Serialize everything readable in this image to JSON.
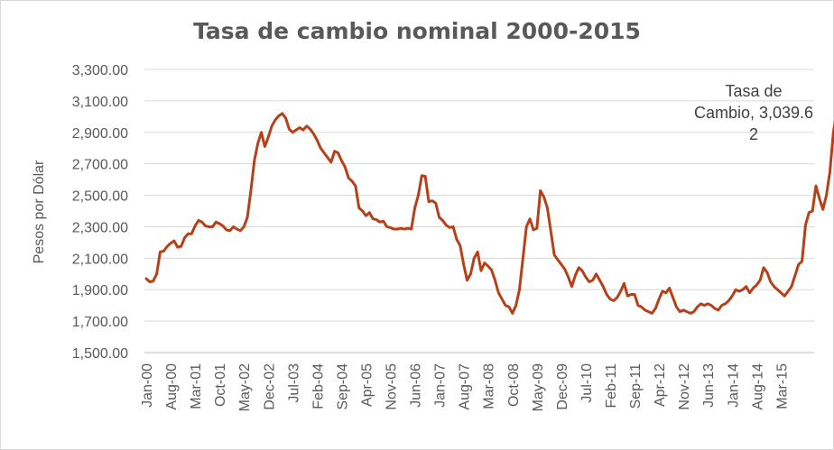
{
  "chart_data": {
    "type": "line",
    "title": "Tasa de cambio nominal 2000-2015",
    "xlabel": "",
    "ylabel": "Pesos por Dólar",
    "ylim": [
      1500,
      3300
    ],
    "yticks": [
      "1,500.00",
      "1,700.00",
      "1,900.00",
      "2,100.00",
      "2,300.00",
      "2,500.00",
      "2,700.00",
      "2,900.00",
      "3,100.00",
      "3,300.00"
    ],
    "xticks": [
      "Jan-00",
      "Aug-00",
      "Mar-01",
      "Oct-01",
      "May-02",
      "Dec-02",
      "Jul-03",
      "Feb-04",
      "Sep-04",
      "Apr-05",
      "Nov-05",
      "Jun-06",
      "Jan-07",
      "Aug-07",
      "Mar-08",
      "Oct-08",
      "May-09",
      "Dec-09",
      "Jul-10",
      "Feb-11",
      "Sep-11",
      "Apr-12",
      "Nov-12",
      "Jun-13",
      "Jan-14",
      "Aug-14",
      "Mar-15"
    ],
    "grid": true,
    "legend": "none",
    "line_color": "#b5411b",
    "series": [
      {
        "x_start": "Jan-00",
        "frequency": "monthly",
        "values": [
          1970,
          1950,
          1955,
          2000,
          2140,
          2145,
          2175,
          2195,
          2210,
          2170,
          2175,
          2230,
          2255,
          2255,
          2305,
          2340,
          2330,
          2305,
          2300,
          2300,
          2330,
          2320,
          2305,
          2280,
          2275,
          2300,
          2285,
          2275,
          2300,
          2360,
          2530,
          2720,
          2830,
          2900,
          2810,
          2870,
          2940,
          2980,
          3005,
          3020,
          2990,
          2920,
          2900,
          2915,
          2930,
          2915,
          2940,
          2920,
          2890,
          2850,
          2800,
          2770,
          2740,
          2710,
          2780,
          2770,
          2720,
          2680,
          2610,
          2590,
          2560,
          2420,
          2400,
          2370,
          2390,
          2350,
          2345,
          2330,
          2335,
          2300,
          2295,
          2285,
          2285,
          2290,
          2285,
          2290,
          2285,
          2420,
          2500,
          2625,
          2620,
          2460,
          2465,
          2450,
          2360,
          2340,
          2310,
          2295,
          2300,
          2220,
          2180,
          2060,
          1960,
          2000,
          2100,
          2140,
          2020,
          2070,
          2050,
          2025,
          1960,
          1880,
          1840,
          1800,
          1790,
          1750,
          1800,
          1900,
          2100,
          2300,
          2350,
          2280,
          2290,
          2530,
          2490,
          2420,
          2270,
          2120,
          2090,
          2060,
          2030,
          1980,
          1920,
          1990,
          2040,
          2020,
          1980,
          1950,
          1960,
          2000,
          1960,
          1920,
          1870,
          1840,
          1830,
          1850,
          1890,
          1940,
          1860,
          1870,
          1870,
          1800,
          1790,
          1770,
          1760,
          1750,
          1780,
          1840,
          1890,
          1880,
          1910,
          1850,
          1790,
          1760,
          1770,
          1760,
          1750,
          1760,
          1790,
          1810,
          1800,
          1810,
          1800,
          1780,
          1770,
          1800,
          1810,
          1830,
          1860,
          1900,
          1890,
          1900,
          1920,
          1880,
          1910,
          1930,
          1960,
          2040,
          2010,
          1950,
          1920,
          1900,
          1880,
          1860,
          1890,
          1920,
          1990,
          2060,
          2080,
          2310,
          2390,
          2400,
          2560,
          2480,
          2410,
          2500,
          2650,
          2900,
          3039.62
        ]
      }
    ],
    "annotation": {
      "text": "Tasa de\nCambio, 3,039.6\n2",
      "value": 3039.62
    }
  }
}
